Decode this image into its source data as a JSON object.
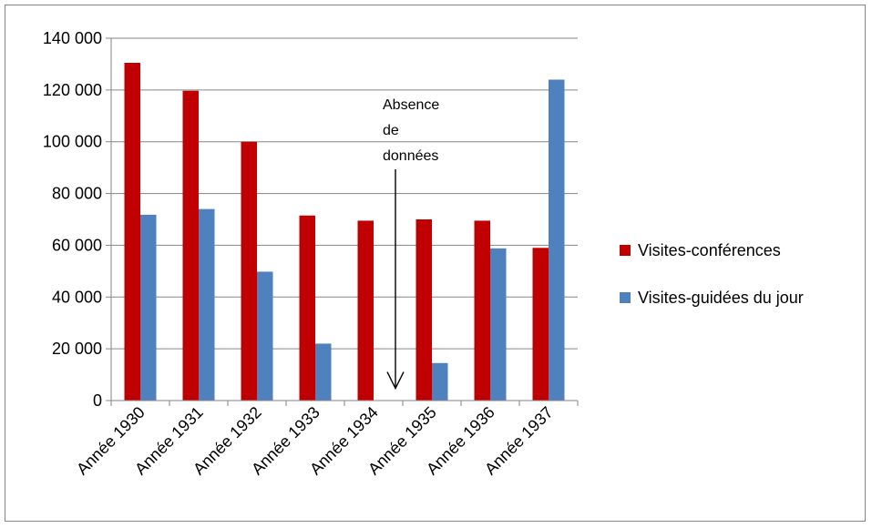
{
  "chart_data": {
    "type": "bar",
    "title": "",
    "xlabel": "",
    "ylabel": "",
    "categories": [
      "Année 1930",
      "Année 1931",
      "Année 1932",
      "Année 1933",
      "Année 1934",
      "Année 1935",
      "Année 1936",
      "Année 1937"
    ],
    "series": [
      {
        "name": "Visites-conférences",
        "color": "#C00000",
        "values": [
          130500,
          119700,
          100000,
          71500,
          69500,
          70000,
          69500,
          59000
        ]
      },
      {
        "name": "Visites-guidées du jour",
        "color": "#4F81BD",
        "values": [
          71800,
          74000,
          49800,
          22000,
          null,
          14500,
          58800,
          124000
        ]
      }
    ],
    "ylim": [
      0,
      140000
    ],
    "yticks": [
      0,
      20000,
      40000,
      60000,
      80000,
      100000,
      120000,
      140000
    ],
    "ytick_labels": [
      "0",
      "20 000",
      "40 000",
      "60 000",
      "80 000",
      "100 000",
      "120 000",
      "140 000"
    ],
    "grid": true,
    "legend_position": "right",
    "annotation": {
      "lines": [
        "Absence",
        "de",
        "données"
      ],
      "category": "Année 1934",
      "arrow_target_value": 10000
    }
  }
}
